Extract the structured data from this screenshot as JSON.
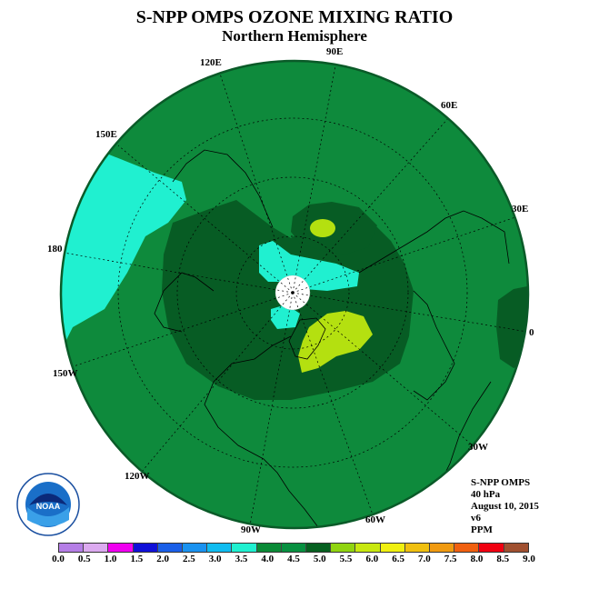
{
  "title": "S-NPP OMPS OZONE MIXING RATIO",
  "subtitle": "Northern Hemisphere",
  "longitude_labels": [
    {
      "name": "lon-label-90e",
      "text": "90E"
    },
    {
      "name": "lon-label-60e",
      "text": "60E"
    },
    {
      "name": "lon-label-30e",
      "text": "30E"
    },
    {
      "name": "lon-label-0",
      "text": "0"
    },
    {
      "name": "lon-label-30w",
      "text": "30W"
    },
    {
      "name": "lon-label-60w",
      "text": "60W"
    },
    {
      "name": "lon-label-90w",
      "text": "90W"
    },
    {
      "name": "lon-label-120w",
      "text": "120W"
    },
    {
      "name": "lon-label-150w",
      "text": "150W"
    },
    {
      "name": "lon-label-180",
      "text": "180"
    },
    {
      "name": "lon-label-150e",
      "text": "150E"
    },
    {
      "name": "lon-label-120e",
      "text": "120E"
    }
  ],
  "info": {
    "instrument": "S-NPP OMPS",
    "level": "40 hPa",
    "date": "August 10, 2015",
    "version": "v6",
    "units": "PPM"
  },
  "logo": {
    "name": "NOAA",
    "text": "NOAA",
    "ring_text": "NATIONAL OCEANIC AND ATMOSPHERIC ADMINISTRATION · U.S. DEPARTMENT OF COMMERCE"
  },
  "colorbar": {
    "colors": [
      "#b57ee6",
      "#dcaaf0",
      "#f000f0",
      "#1010d8",
      "#1a5fe8",
      "#1a92f0",
      "#10bcf0",
      "#20f0d0",
      "#0a8a36",
      "#079040",
      "#066020",
      "#90d410",
      "#c8e810",
      "#f0f010",
      "#f0c010",
      "#f09a10",
      "#f06010",
      "#f00010",
      "#a05030"
    ],
    "ticks": [
      "0.0",
      "0.5",
      "1.0",
      "1.5",
      "2.0",
      "2.5",
      "3.0",
      "3.5",
      "4.0",
      "4.5",
      "5.0",
      "5.5",
      "6.0",
      "6.5",
      "7.0",
      "7.5",
      "8.0",
      "8.5",
      "9.0"
    ]
  },
  "map_colors": {
    "background": "#0e8a3c",
    "dark_green": "#075c24",
    "cyan": "#20f0d0",
    "lime": "#b4e010",
    "pole_missing": "#ffffff"
  }
}
